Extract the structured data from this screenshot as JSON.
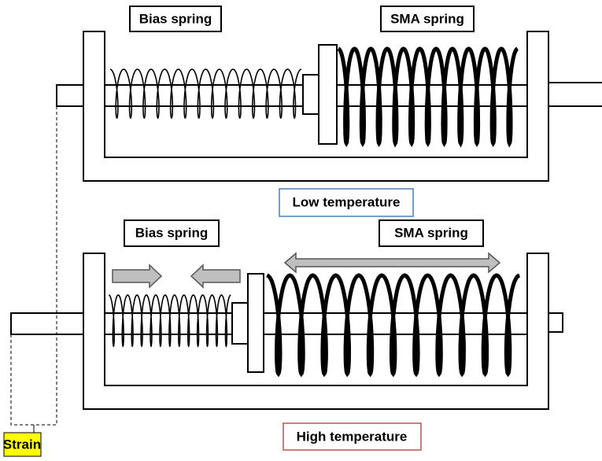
{
  "panels": [
    {
      "bias_label": "Bias spring",
      "sma_label": "SMA spring",
      "state": "Low temperature"
    },
    {
      "bias_label": "Bias spring",
      "sma_label": "SMA spring",
      "state": "High temperature"
    }
  ],
  "strain_label": "Strain"
}
